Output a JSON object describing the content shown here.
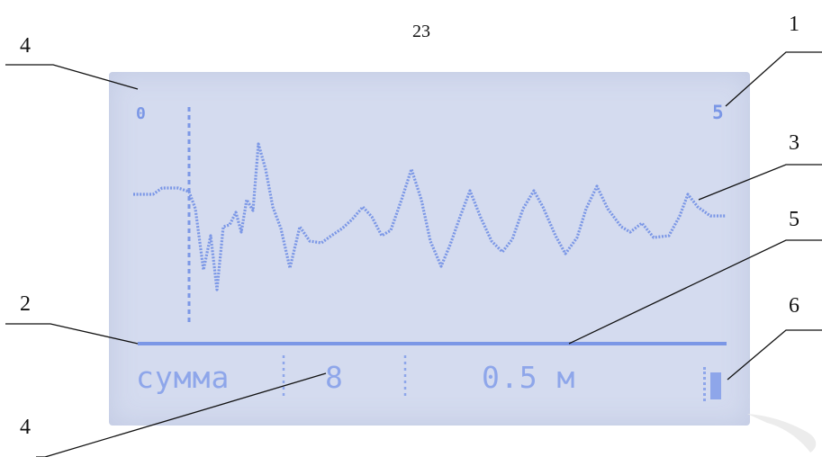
{
  "page_number": "23",
  "callouts": [
    {
      "label": "1"
    },
    {
      "label": "3"
    },
    {
      "label": "5"
    },
    {
      "label": "6"
    },
    {
      "label": "4"
    },
    {
      "label": "2"
    },
    {
      "label": "4"
    }
  ],
  "display": {
    "scale_left": "0",
    "scale_right": "5",
    "status_bar": {
      "mode_label": "сумма",
      "count_value": "8",
      "distance_value": "0.5 м"
    },
    "colors": {
      "lcd_background": "#d4dbef",
      "lcd_foreground": "#7b97e6"
    }
  }
}
